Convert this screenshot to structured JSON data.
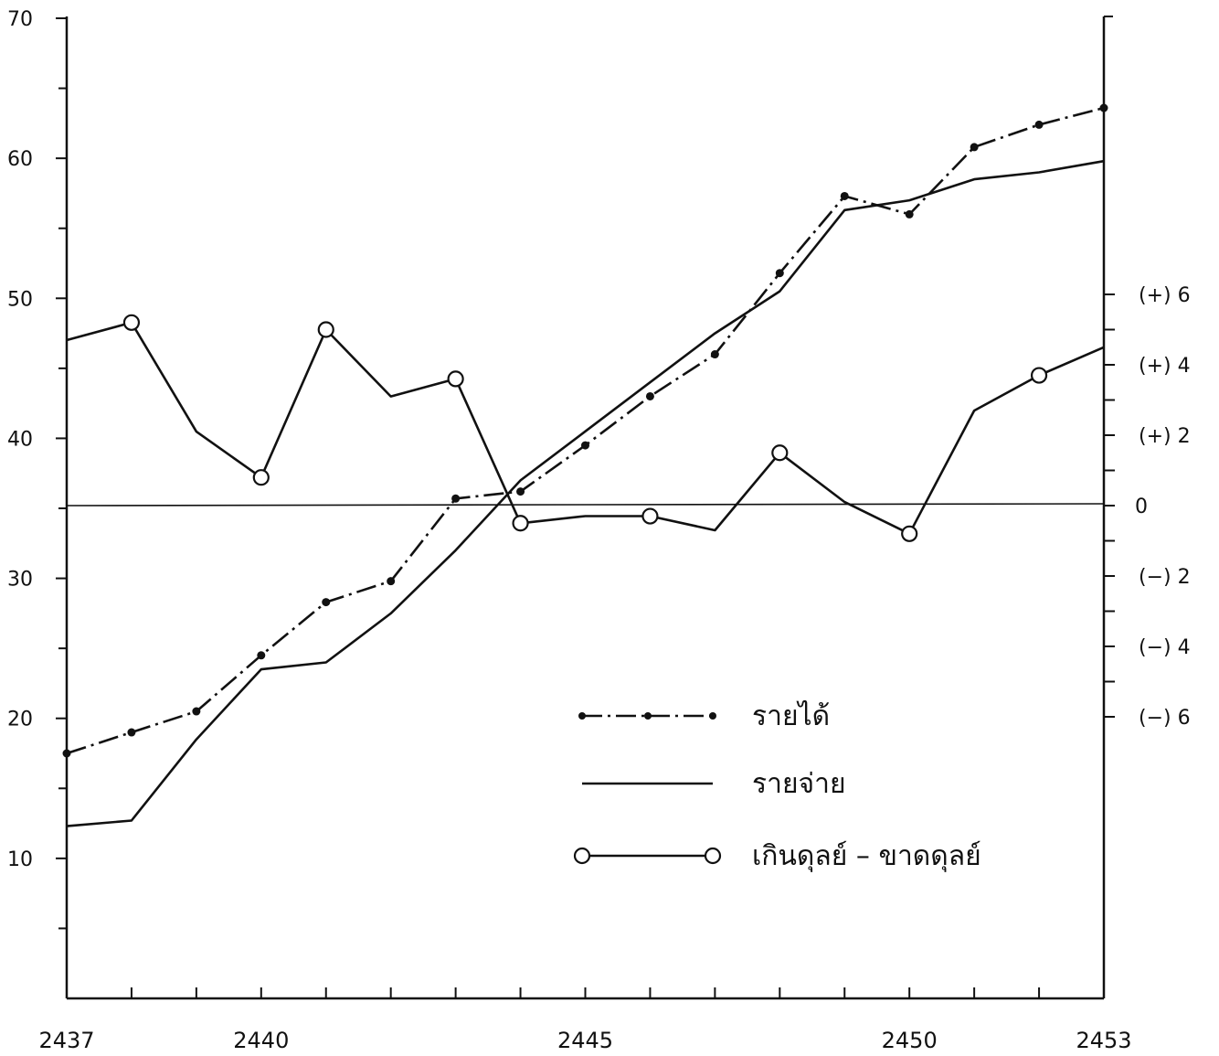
{
  "chart_data": {
    "type": "line",
    "title": "",
    "xlabel": "",
    "ylabel": "",
    "x": [
      2437,
      2438,
      2439,
      2440,
      2441,
      2442,
      2443,
      2444,
      2445,
      2446,
      2447,
      2448,
      2449,
      2450,
      2451,
      2452,
      2453
    ],
    "x_tick_values": [
      2437,
      2438,
      2439,
      2440,
      2441,
      2442,
      2443,
      2444,
      2445,
      2446,
      2447,
      2448,
      2449,
      2450,
      2451,
      2452,
      2453
    ],
    "x_tick_labels": [
      {
        "value": 2437,
        "text": "2437"
      },
      {
        "value": 2440,
        "text": "2440"
      },
      {
        "value": 2445,
        "text": "2445"
      },
      {
        "value": 2450,
        "text": "2450"
      },
      {
        "value": 2453,
        "text": "2453"
      }
    ],
    "xlim": [
      2437,
      2453
    ],
    "left_axis": {
      "ylim": [
        0,
        70
      ],
      "tick_labels": [
        {
          "value": 10,
          "text": "10"
        },
        {
          "value": 20,
          "text": "20"
        },
        {
          "value": 30,
          "text": "30"
        },
        {
          "value": 40,
          "text": "40"
        },
        {
          "value": 50,
          "text": "50"
        },
        {
          "value": 60,
          "text": "60"
        },
        {
          "value": 70,
          "text": "70"
        }
      ],
      "minor_ticks": [
        5,
        15,
        25,
        35,
        45,
        55,
        65
      ]
    },
    "right_axis": {
      "ylim": [
        -9,
        9
      ],
      "tick_values": [
        -6,
        -5,
        -4,
        -3,
        -2,
        -1,
        0,
        1,
        2,
        3,
        4,
        5,
        6
      ],
      "tick_labels": [
        {
          "value": 6,
          "text": "(+)  6"
        },
        {
          "value": 4,
          "text": "(+)  4"
        },
        {
          "value": 2,
          "text": "(+)  2"
        },
        {
          "value": 0,
          "text": "0"
        },
        {
          "value": -2,
          "text": "(−)  2"
        },
        {
          "value": -4,
          "text": "(−)  4"
        },
        {
          "value": -6,
          "text": "(−)  6"
        }
      ]
    },
    "series": [
      {
        "name": "รายได้",
        "axis": "left",
        "style": "dash-dot",
        "marker": "dot",
        "values": [
          17.5,
          19,
          20.5,
          24.5,
          28.3,
          29.8,
          35.7,
          36.2,
          39.5,
          43,
          46,
          51.8,
          57.3,
          56,
          60.8,
          62.4,
          63.6
        ]
      },
      {
        "name": "รายจ่าย",
        "axis": "left",
        "style": "solid",
        "marker": "none",
        "values": [
          12.3,
          12.7,
          18.5,
          23.5,
          24,
          27.5,
          32,
          37,
          40.5,
          44,
          47.5,
          50.5,
          56.3,
          57,
          58.5,
          59,
          59.8
        ]
      },
      {
        "name": "เกินดุลย์ – ขาดดุลย์",
        "axis": "right",
        "style": "solid",
        "marker": "circle",
        "values": [
          4.7,
          5.2,
          2.1,
          0.8,
          5.0,
          3.1,
          3.6,
          -0.5,
          -0.3,
          -0.3,
          -0.7,
          1.5,
          0.1,
          -0.8,
          2.7,
          3.7,
          4.5
        ],
        "marker_indices": [
          1,
          3,
          4,
          6,
          7,
          9,
          11,
          13,
          15
        ]
      }
    ],
    "legend": {
      "position": "bottom-center",
      "entries": [
        "รายได้",
        "รายจ่าย",
        "เกินดุลย์ – ขาดดุลย์"
      ]
    },
    "grid": false
  }
}
